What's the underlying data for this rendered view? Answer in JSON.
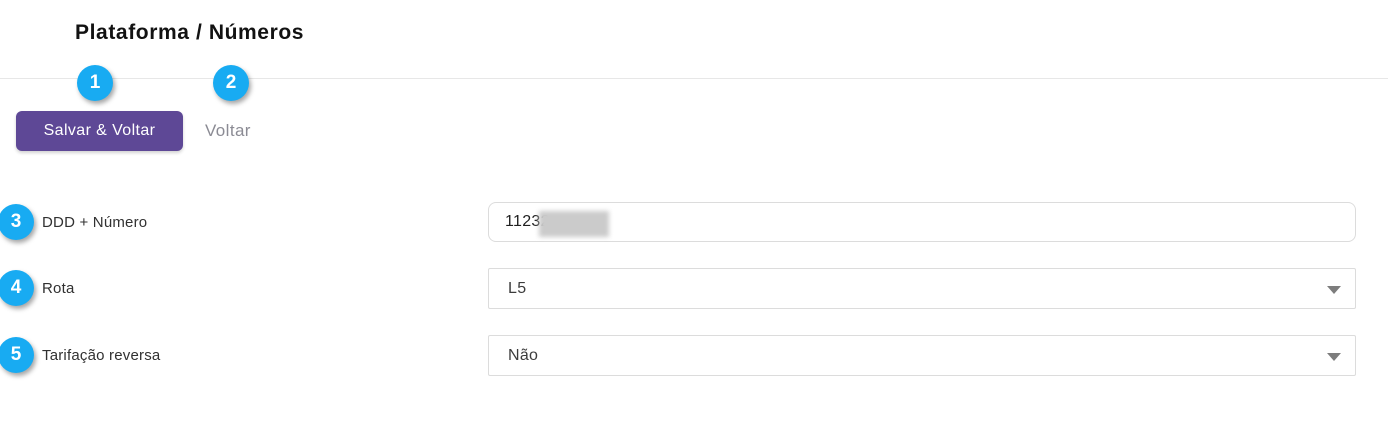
{
  "page": {
    "title": "Plataforma / Números"
  },
  "toolbar": {
    "save_button_label": "Salvar & Voltar",
    "back_link_label": "Voltar"
  },
  "badges": [
    "1",
    "2",
    "3",
    "4",
    "5"
  ],
  "form": {
    "fields": [
      {
        "label": "DDD + Número",
        "type": "input",
        "value": "11232",
        "redacted": true
      },
      {
        "label": "Rota",
        "type": "select",
        "value": "L5"
      },
      {
        "label": "Tarifação reversa",
        "type": "select",
        "value": "Não"
      }
    ]
  },
  "colors": {
    "accent_purple": "#5e4896",
    "badge_cyan": "#18abf2"
  }
}
